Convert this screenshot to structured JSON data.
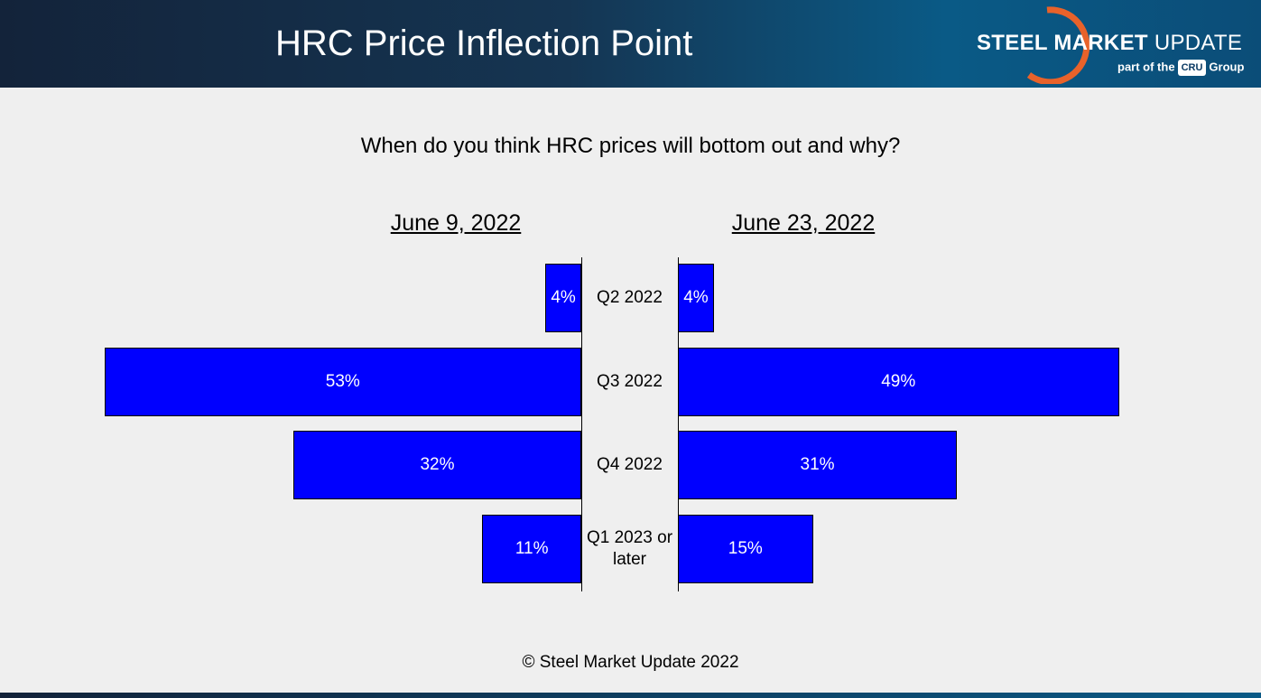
{
  "header": {
    "title": "HRC Price Inflection Point",
    "logo": {
      "brand_bold": "STEEL MARKET",
      "brand": "UPDATE",
      "tagline_pre": "part of the",
      "cru": "CRU",
      "tagline_post": "Group"
    }
  },
  "chart_data": {
    "type": "butterfly-bar",
    "title": "When do you think HRC prices will bottom out and why?",
    "categories": [
      "Q2 2022",
      "Q3 2022",
      "Q4 2022",
      "Q1 2023 or later"
    ],
    "series": [
      {
        "name": "June 9, 2022",
        "color": "#0000ff",
        "values": [
          4,
          53,
          32,
          11
        ],
        "value_labels": [
          "4%",
          "53%",
          "32%",
          "11%"
        ]
      },
      {
        "name": "June 23, 2022",
        "color": "#0000ff",
        "values": [
          4,
          49,
          31,
          15
        ],
        "value_labels": [
          "4%",
          "49%",
          "31%",
          "15%"
        ]
      }
    ]
  },
  "footer": "© Steel Market Update 2022"
}
